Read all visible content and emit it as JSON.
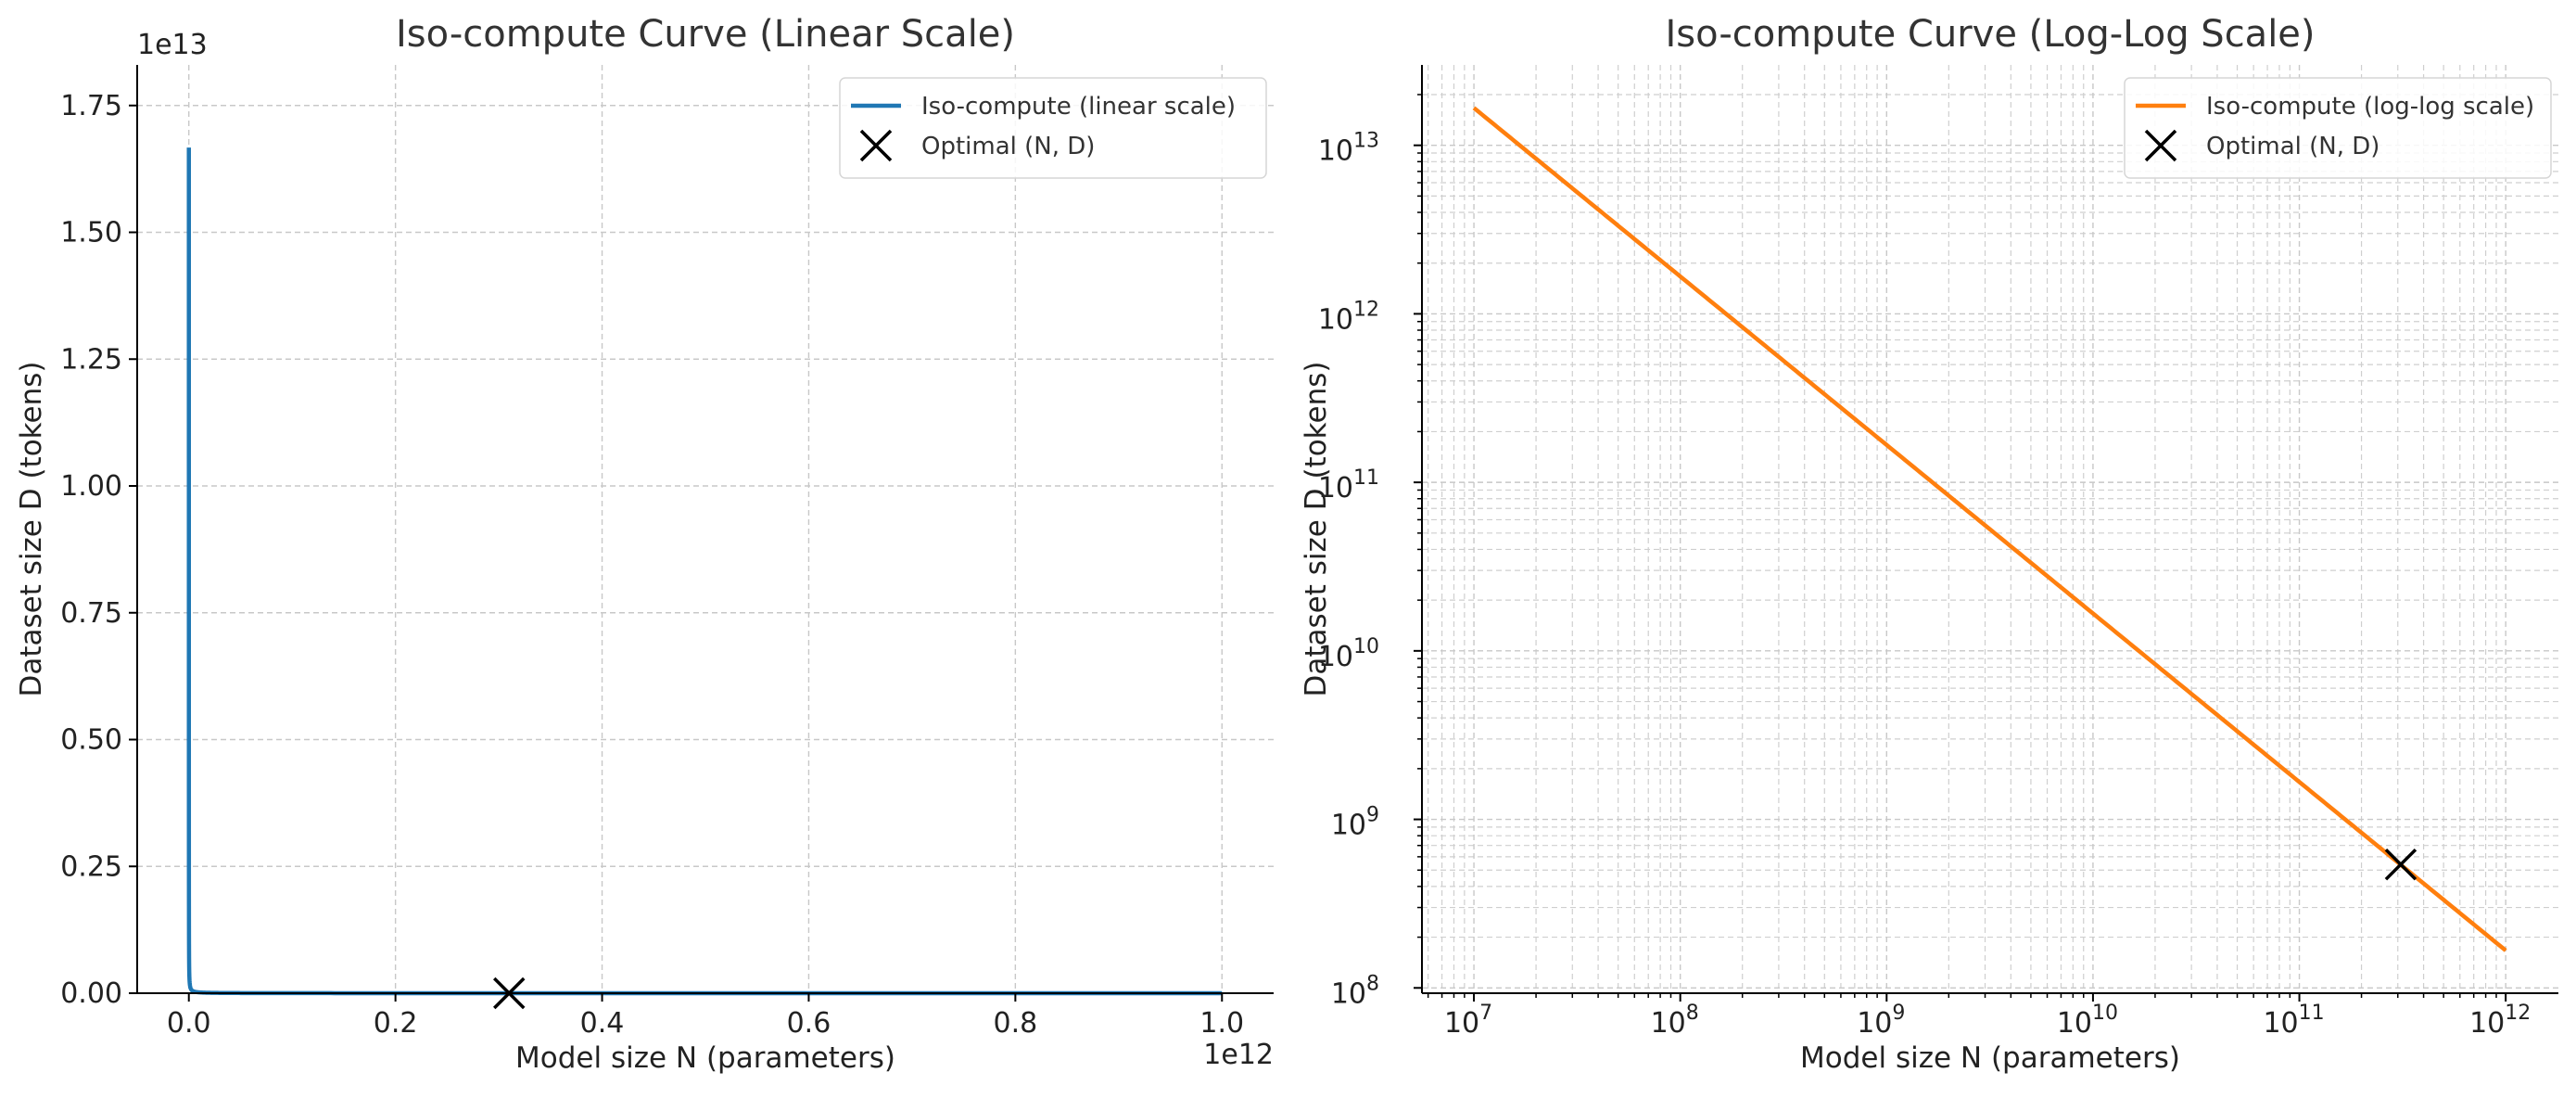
{
  "chart_data": [
    {
      "type": "line",
      "title": "Iso-compute Curve (Linear Scale)",
      "xlabel": "Model size N (parameters)",
      "ylabel": "Dataset size D (tokens)",
      "x_scale": "linear",
      "y_scale": "linear",
      "x_offset_label": "1e12",
      "y_offset_label": "1e13",
      "xlim": [
        -50000000000.0,
        1050000000000.0
      ],
      "ylim": [
        0,
        18300000000000.0
      ],
      "xticks": [
        0,
        200000000000.0,
        400000000000.0,
        600000000000.0,
        800000000000.0,
        1000000000000.0
      ],
      "xtick_labels": [
        "0.0",
        "0.2",
        "0.4",
        "0.6",
        "0.8",
        "1.0"
      ],
      "yticks": [
        0,
        2500000000000.0,
        5000000000000.0,
        7500000000000.0,
        10000000000000.0,
        12500000000000.0,
        15000000000000.0,
        17500000000000.0
      ],
      "ytick_labels": [
        "0.00",
        "0.25",
        "0.50",
        "0.75",
        "1.00",
        "1.25",
        "1.50",
        "1.75"
      ],
      "grid": true,
      "legend_position": "top-right",
      "series": [
        {
          "name": "Iso-compute (linear scale)",
          "kind": "curve",
          "color": "#1f77b4",
          "relation": "N * D = 1.667e20",
          "x_range": [
            10000000.0,
            1000000000000.0
          ]
        },
        {
          "name": "Optimal (N, D)",
          "kind": "marker",
          "marker": "x",
          "color": "#000000",
          "points": [
            {
              "x": 310000000000.0,
              "y": 540000000.0
            }
          ]
        }
      ]
    },
    {
      "type": "line",
      "title": "Iso-compute Curve (Log-Log Scale)",
      "xlabel": "Model size N (parameters)",
      "ylabel": "Dataset size D (tokens)",
      "x_scale": "log",
      "y_scale": "log",
      "xlim": [
        5600000.0,
        1800000000000.0
      ],
      "ylim": [
        93000000.0,
        30000000000000.0
      ],
      "xticks": [
        10000000.0,
        100000000.0,
        1000000000.0,
        10000000000.0,
        100000000000.0,
        1000000000000.0
      ],
      "xtick_labels": [
        [
          "10",
          "7"
        ],
        [
          "10",
          "8"
        ],
        [
          "10",
          "9"
        ],
        [
          "10",
          "10"
        ],
        [
          "10",
          "11"
        ],
        [
          "10",
          "12"
        ]
      ],
      "yticks": [
        100000000.0,
        1000000000.0,
        10000000000.0,
        100000000000.0,
        1000000000000.0,
        10000000000000.0
      ],
      "ytick_labels": [
        [
          "10",
          "8"
        ],
        [
          "10",
          "9"
        ],
        [
          "10",
          "10"
        ],
        [
          "10",
          "11"
        ],
        [
          "10",
          "12"
        ],
        [
          "10",
          "13"
        ]
      ],
      "grid": true,
      "minor_grid": true,
      "legend_position": "top-right",
      "series": [
        {
          "name": "Iso-compute (log-log scale)",
          "kind": "curve",
          "color": "#ff7f0e",
          "relation": "N * D = 1.667e20",
          "x_range": [
            10000000.0,
            1000000000000.0
          ]
        },
        {
          "name": "Optimal (N, D)",
          "kind": "marker",
          "marker": "x",
          "color": "#000000",
          "points": [
            {
              "x": 310000000000.0,
              "y": 540000000.0
            }
          ]
        }
      ]
    }
  ]
}
